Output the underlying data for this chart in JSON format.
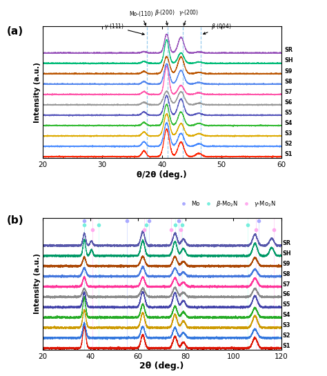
{
  "panel_a": {
    "title": "(a)",
    "xlabel": "θ/2θ (deg.)",
    "ylabel": "Intensity (a.u.)",
    "xlim": [
      20,
      60
    ],
    "xticklabels": [
      20,
      30,
      40,
      50,
      60
    ],
    "dashed_lines": [
      37.5,
      41.0,
      43.5,
      46.5
    ],
    "dashed_color": "#99ccee",
    "samples": [
      "SR",
      "SH",
      "S9",
      "S8",
      "S7",
      "S6",
      "S5",
      "S4",
      "S3",
      "S2",
      "S1"
    ],
    "colors": [
      "#9955bb",
      "#00bb77",
      "#bb5500",
      "#5588ee",
      "#ff55aa",
      "#999999",
      "#5555bb",
      "#33bb33",
      "#ddaa00",
      "#4488ff",
      "#ff2200"
    ]
  },
  "panel_b": {
    "title": "(b)",
    "xlabel": "2θ (deg.)",
    "ylabel": "Intensity (a.u.)",
    "xlim": [
      20,
      120
    ],
    "xticklabels": [
      20,
      40,
      60,
      80,
      100,
      120
    ],
    "mo_lines": [
      37.5,
      55.5,
      64.5,
      77.0,
      110.5
    ],
    "beta_lines": [
      37.5,
      43.5,
      63.5,
      75.5,
      78.5,
      106.0
    ],
    "gamma_lines": [
      41.0,
      62.5,
      74.0,
      78.0,
      109.5,
      117.0
    ],
    "mo_color": "#aaaaff",
    "beta_color": "#aaffee",
    "gamma_color": "#ffaaee",
    "samples": [
      "SR",
      "SH",
      "S9",
      "S8",
      "S7",
      "S6",
      "S5",
      "S4",
      "S3",
      "S2",
      "S1"
    ],
    "colors": [
      "#5555aa",
      "#009966",
      "#aa4400",
      "#4477dd",
      "#ff3399",
      "#888888",
      "#4444aa",
      "#22aa22",
      "#cc9900",
      "#3377dd",
      "#dd1100"
    ]
  }
}
